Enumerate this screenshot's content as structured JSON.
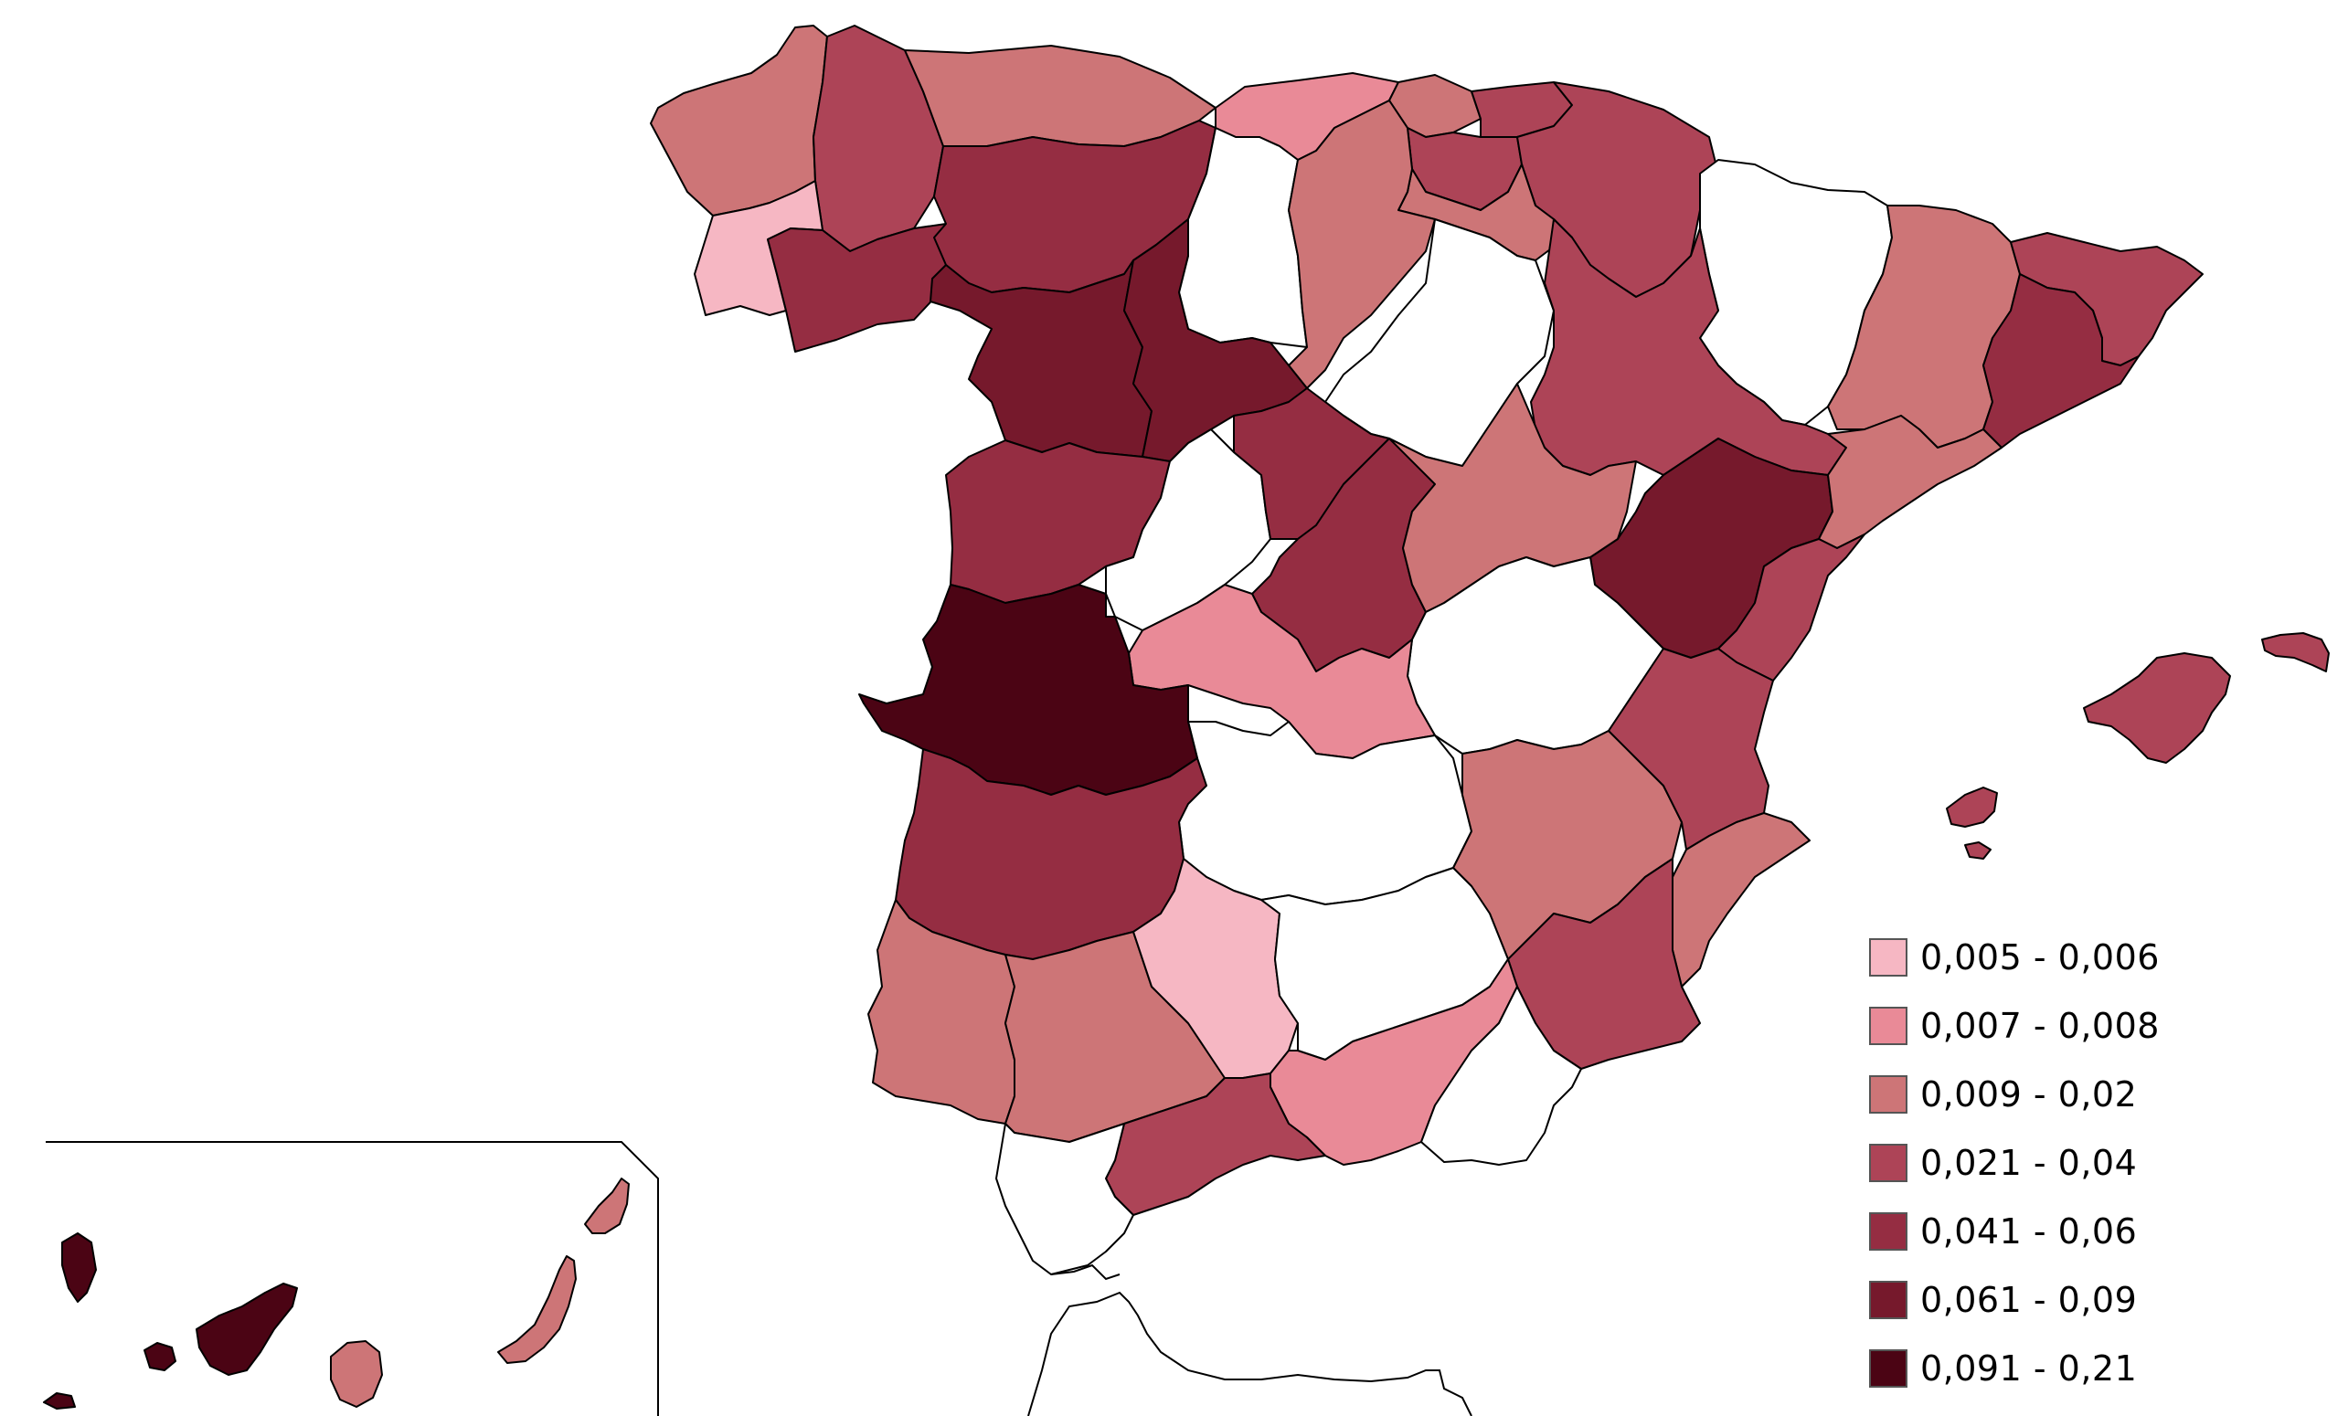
{
  "legend": {
    "classes": [
      {
        "label": "0,005 - 0,006",
        "color": "#f6b7c3"
      },
      {
        "label": "0,007 - 0,008",
        "color": "#e98a97"
      },
      {
        "label": "0,009 - 0,02",
        "color": "#cd7577"
      },
      {
        "label": "0,021 - 0,04",
        "color": "#ad4457"
      },
      {
        "label": "0,041 - 0,06",
        "color": "#952d42"
      },
      {
        "label": "0,061 - 0,09",
        "color": "#76192c"
      },
      {
        "label": "0,091 - 0,21",
        "color": "#4b0414"
      }
    ]
  },
  "no_data_color": "#ffffff"
}
